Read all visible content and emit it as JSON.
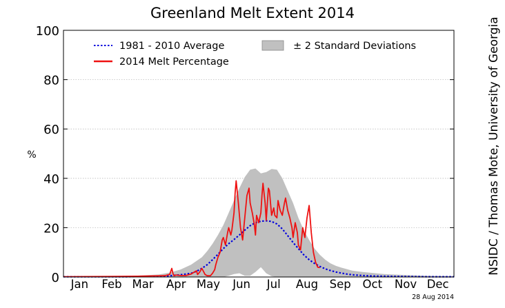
{
  "credit": "NSIDC / Thomas Mote, University of Georgia",
  "date_stamp": "28 Aug 2014",
  "colors": {
    "average": "#0000dd",
    "current": "#ee1111",
    "band": "#c0c0c0",
    "grid": "#bbbbbb"
  },
  "chart_data": {
    "type": "line",
    "title": "Greenland Melt Extent 2014",
    "xlabel": "",
    "ylabel": "%",
    "xlim": [
      1,
      365
    ],
    "ylim": [
      0,
      100
    ],
    "yticks": [
      0,
      20,
      40,
      60,
      80,
      100
    ],
    "month_labels": [
      "Jan",
      "Feb",
      "Mar",
      "Apr",
      "May",
      "Jun",
      "Jul",
      "Aug",
      "Sep",
      "Oct",
      "Nov",
      "Dec"
    ],
    "month_label_days": [
      16,
      46,
      75,
      106,
      136,
      167,
      197,
      228,
      259,
      289,
      320,
      350
    ],
    "grid": "horizontal dotted",
    "legend_position": "top",
    "legend": [
      "1981 - 2010 Average",
      "2014 Melt Percentage",
      "± 2 Standard Deviations"
    ],
    "series": [
      {
        "name": "1981 - 2010 Average",
        "style": "dotted",
        "x": [
          1,
          60,
          90,
          100,
          110,
          120,
          125,
          130,
          135,
          140,
          145,
          150,
          155,
          160,
          165,
          170,
          175,
          180,
          185,
          190,
          195,
          200,
          205,
          210,
          215,
          220,
          225,
          230,
          235,
          240,
          245,
          250,
          255,
          260,
          265,
          270,
          280,
          290,
          300,
          320,
          340,
          365
        ],
        "y": [
          0.1,
          0.1,
          0.3,
          0.5,
          0.9,
          1.5,
          2.3,
          3.5,
          5.0,
          7.0,
          9.2,
          11.5,
          13.5,
          15.2,
          17.0,
          19.0,
          20.8,
          22.0,
          22.6,
          22.8,
          22.5,
          21.5,
          19.5,
          16.8,
          14.0,
          11.5,
          9.0,
          7.0,
          5.5,
          4.3,
          3.3,
          2.6,
          2.0,
          1.6,
          1.2,
          0.9,
          0.6,
          0.4,
          0.3,
          0.2,
          0.1,
          0.1
        ]
      },
      {
        "name": "2014 Melt Percentage",
        "style": "solid",
        "x": [
          1,
          40,
          70,
          95,
          100,
          102,
          103,
          104,
          106,
          110,
          115,
          120,
          123,
          125,
          126,
          128,
          130,
          133,
          135,
          138,
          140,
          142,
          143,
          145,
          147,
          149,
          150,
          152,
          154,
          155,
          157,
          158,
          160,
          161,
          162,
          164,
          166,
          168,
          170,
          172,
          174,
          175,
          177,
          179,
          180,
          181,
          183,
          185,
          186,
          187,
          189,
          190,
          192,
          193,
          195,
          197,
          198,
          200,
          201,
          203,
          205,
          207,
          208,
          210,
          212,
          214,
          215,
          217,
          219,
          220,
          222,
          224,
          226,
          228,
          230,
          232,
          234,
          236,
          238,
          240
        ],
        "y": [
          0.1,
          0.2,
          0.3,
          0.5,
          1.0,
          3.5,
          1.5,
          0.5,
          0.8,
          0.6,
          0.6,
          1.2,
          2.0,
          2.5,
          1.0,
          2.0,
          3.5,
          1.0,
          0.5,
          0.5,
          1.5,
          3.0,
          5.0,
          8.0,
          10.0,
          15.0,
          16.0,
          13.0,
          18.0,
          20.0,
          17.0,
          19.0,
          26.0,
          34.0,
          39.0,
          30.0,
          20.0,
          15.0,
          24.0,
          33.0,
          36.0,
          30.0,
          26.0,
          21.0,
          17.0,
          25.0,
          22.0,
          26.0,
          33.0,
          38.0,
          30.0,
          23.0,
          36.0,
          35.0,
          25.0,
          28.0,
          25.0,
          24.0,
          31.0,
          27.0,
          25.0,
          30.0,
          32.0,
          27.0,
          24.0,
          20.0,
          16.0,
          22.0,
          18.0,
          13.0,
          11.0,
          20.0,
          16.0,
          24.0,
          29.0,
          18.0,
          10.0,
          6.0,
          4.0,
          3.8
        ]
      }
    ],
    "band": {
      "name": "± 2 Standard Deviations",
      "x": [
        1,
        60,
        90,
        100,
        110,
        120,
        125,
        130,
        135,
        140,
        145,
        150,
        155,
        160,
        165,
        170,
        175,
        180,
        185,
        190,
        195,
        200,
        205,
        210,
        215,
        220,
        225,
        230,
        235,
        240,
        245,
        250,
        255,
        260,
        265,
        270,
        280,
        290,
        300,
        320,
        340,
        365
      ],
      "upper": [
        0.3,
        0.3,
        1.0,
        1.8,
        3.0,
        5.0,
        6.5,
        8.0,
        10.5,
        13.5,
        17.0,
        21.0,
        26.0,
        31.0,
        36.0,
        40.5,
        43.5,
        44.0,
        42.0,
        42.5,
        43.8,
        43.5,
        40.0,
        35.0,
        30.0,
        24.0,
        19.0,
        15.0,
        11.5,
        9.0,
        7.0,
        5.5,
        4.5,
        3.8,
        3.2,
        2.6,
        2.0,
        1.6,
        1.2,
        0.8,
        0.5,
        0.3
      ],
      "lower": [
        0,
        0,
        0,
        0,
        0,
        0,
        0,
        0,
        0,
        0,
        0,
        0,
        0.5,
        1.2,
        1.5,
        0.5,
        0.5,
        2.0,
        4.0,
        1.5,
        0.3,
        0,
        0,
        0,
        0,
        0,
        0,
        0,
        0,
        0,
        0,
        0,
        0,
        0,
        0,
        0,
        0,
        0,
        0,
        0,
        0,
        0
      ]
    }
  }
}
